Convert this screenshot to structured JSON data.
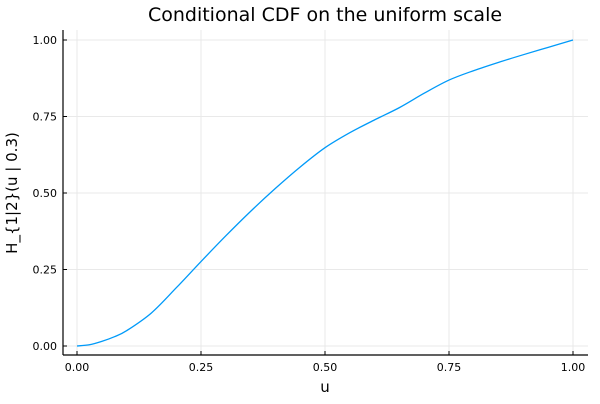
{
  "chart_data": {
    "type": "line",
    "title": "Conditional CDF on the uniform scale",
    "xlabel": "u",
    "ylabel": "H_{1|2}(u | 0.3)",
    "xlim": [
      -0.03,
      1.03
    ],
    "ylim": [
      -0.03,
      1.03
    ],
    "xticks": [
      0,
      0.25,
      0.5,
      0.75,
      1
    ],
    "xtick_labels": [
      "0.00",
      "0.25",
      "0.50",
      "0.75",
      "1.00"
    ],
    "yticks": [
      0,
      0.25,
      0.5,
      0.75,
      1
    ],
    "ytick_labels": [
      "0.00",
      "0.25",
      "0.50",
      "0.75",
      "1.00"
    ],
    "grid": true,
    "legend": "none",
    "series": [
      {
        "color": "#009af9",
        "x": [
          0,
          0.025,
          0.05,
          0.075,
          0.1,
          0.15,
          0.2,
          0.25,
          0.3,
          0.35,
          0.4,
          0.45,
          0.5,
          0.55,
          0.6,
          0.65,
          0.7,
          0.75,
          0.8,
          0.85,
          0.9,
          0.95,
          1.0
        ],
        "y": [
          0,
          0.004,
          0.015,
          0.03,
          0.05,
          0.108,
          0.19,
          0.276,
          0.36,
          0.44,
          0.515,
          0.585,
          0.648,
          0.697,
          0.739,
          0.779,
          0.826,
          0.869,
          0.9,
          0.927,
          0.952,
          0.976,
          1.0
        ]
      }
    ]
  }
}
